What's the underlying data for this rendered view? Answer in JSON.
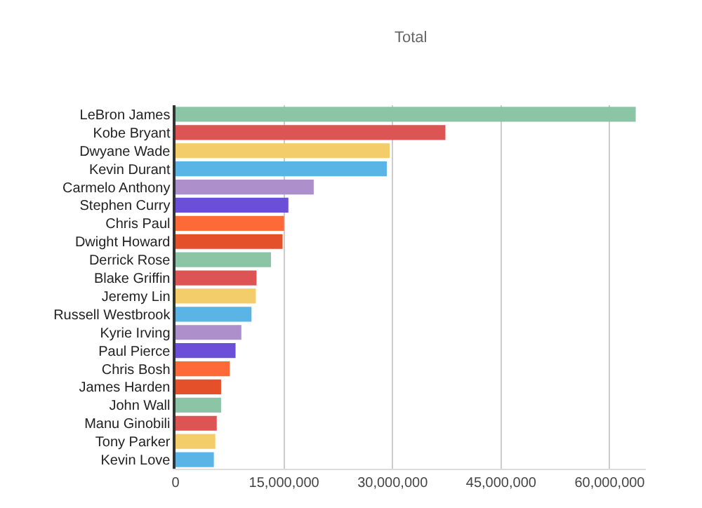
{
  "chart_data": {
    "type": "bar",
    "orientation": "horizontal",
    "annotations": [
      "Total"
    ],
    "categories": [
      "LeBron James",
      "Kobe Bryant",
      "Dwyane Wade",
      "Kevin Durant",
      "Carmelo Anthony",
      "Stephen Curry",
      "Chris Paul",
      "Dwight Howard",
      "Derrick Rose",
      "Blake Griffin",
      "Jeremy Lin",
      "Russell Westbrook",
      "Kyrie Irving",
      "Paul Pierce",
      "Chris Bosh",
      "James Harden",
      "John Wall",
      "Manu Ginobili",
      "Tony Parker",
      "Kevin Love"
    ],
    "values": [
      63600000,
      37300000,
      29600000,
      29200000,
      19100000,
      15600000,
      15000000,
      14800000,
      13200000,
      11200000,
      11100000,
      10500000,
      9100000,
      8300000,
      7500000,
      6300000,
      6300000,
      5700000,
      5500000,
      5300000
    ],
    "colors": [
      "#8cc5a6",
      "#dc5453",
      "#f2cd6a",
      "#5ab4e5",
      "#ac8fcb",
      "#6b4fd8",
      "#fd6a37",
      "#e4502a",
      "#8cc5a6",
      "#dc5453",
      "#f2cd6a",
      "#5ab4e5",
      "#ac8fcb",
      "#6b4fd8",
      "#fd6a37",
      "#e4502a",
      "#8cc5a6",
      "#dc5453",
      "#f2cd6a",
      "#5ab4e5"
    ],
    "xlim": [
      0,
      65000000
    ],
    "xticks": [
      0,
      {
        "value": 15000000,
        "label": "15,000,000"
      },
      {
        "value": 30000000,
        "label": "30,000,000"
      },
      {
        "value": 45000000,
        "label": "45,000,000"
      },
      {
        "value": 60000000,
        "label": "60,000,000"
      }
    ],
    "grid": "x"
  }
}
